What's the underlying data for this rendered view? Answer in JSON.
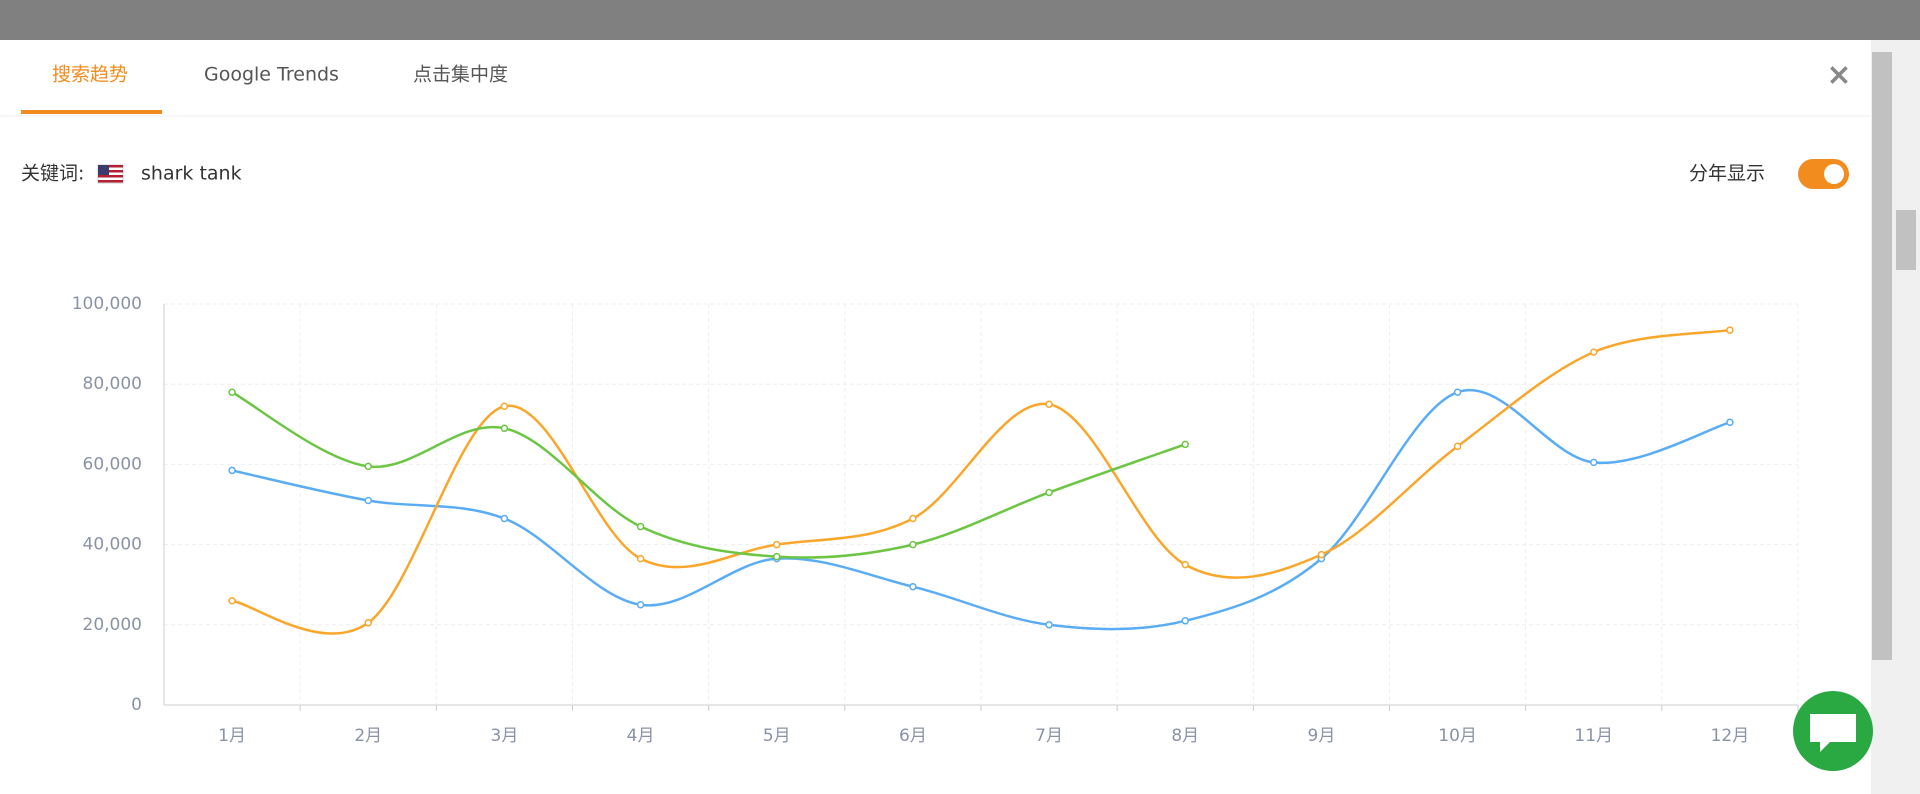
{
  "tabs": [
    "搜索趋势",
    "Google Trends",
    "点击集中度"
  ],
  "keyword_label": "关键词:",
  "keyword": "shark tank",
  "toggle_label": "分年显示",
  "chart_data": {
    "type": "line",
    "categories": [
      "1月",
      "2月",
      "3月",
      "4月",
      "5月",
      "6月",
      "7月",
      "8月",
      "9月",
      "10月",
      "11月",
      "12月"
    ],
    "series": [
      {
        "color": "#5aacf5",
        "values": [
          58500,
          51000,
          46500,
          25000,
          36500,
          29500,
          20000,
          21000,
          36500,
          78000,
          60500,
          70500
        ]
      },
      {
        "color": "#f9a62b",
        "values": [
          26000,
          20500,
          74500,
          36500,
          40000,
          46500,
          75000,
          35000,
          37500,
          64500,
          88000,
          93500
        ]
      },
      {
        "color": "#6cc644",
        "values": [
          78000,
          59500,
          69000,
          44500,
          37000,
          40000,
          53000,
          65000,
          null,
          null,
          null,
          null
        ]
      }
    ],
    "ylim": [
      0,
      100000
    ],
    "yticks": [
      0,
      {
        "value": 20000,
        "label": "20,000"
      },
      {
        "value": 40000,
        "label": "40,000"
      },
      {
        "value": 60000,
        "label": "60,000"
      },
      {
        "value": 80000,
        "label": "80,000"
      },
      {
        "value": 100000,
        "label": "100,000"
      }
    ],
    "grid": true
  }
}
